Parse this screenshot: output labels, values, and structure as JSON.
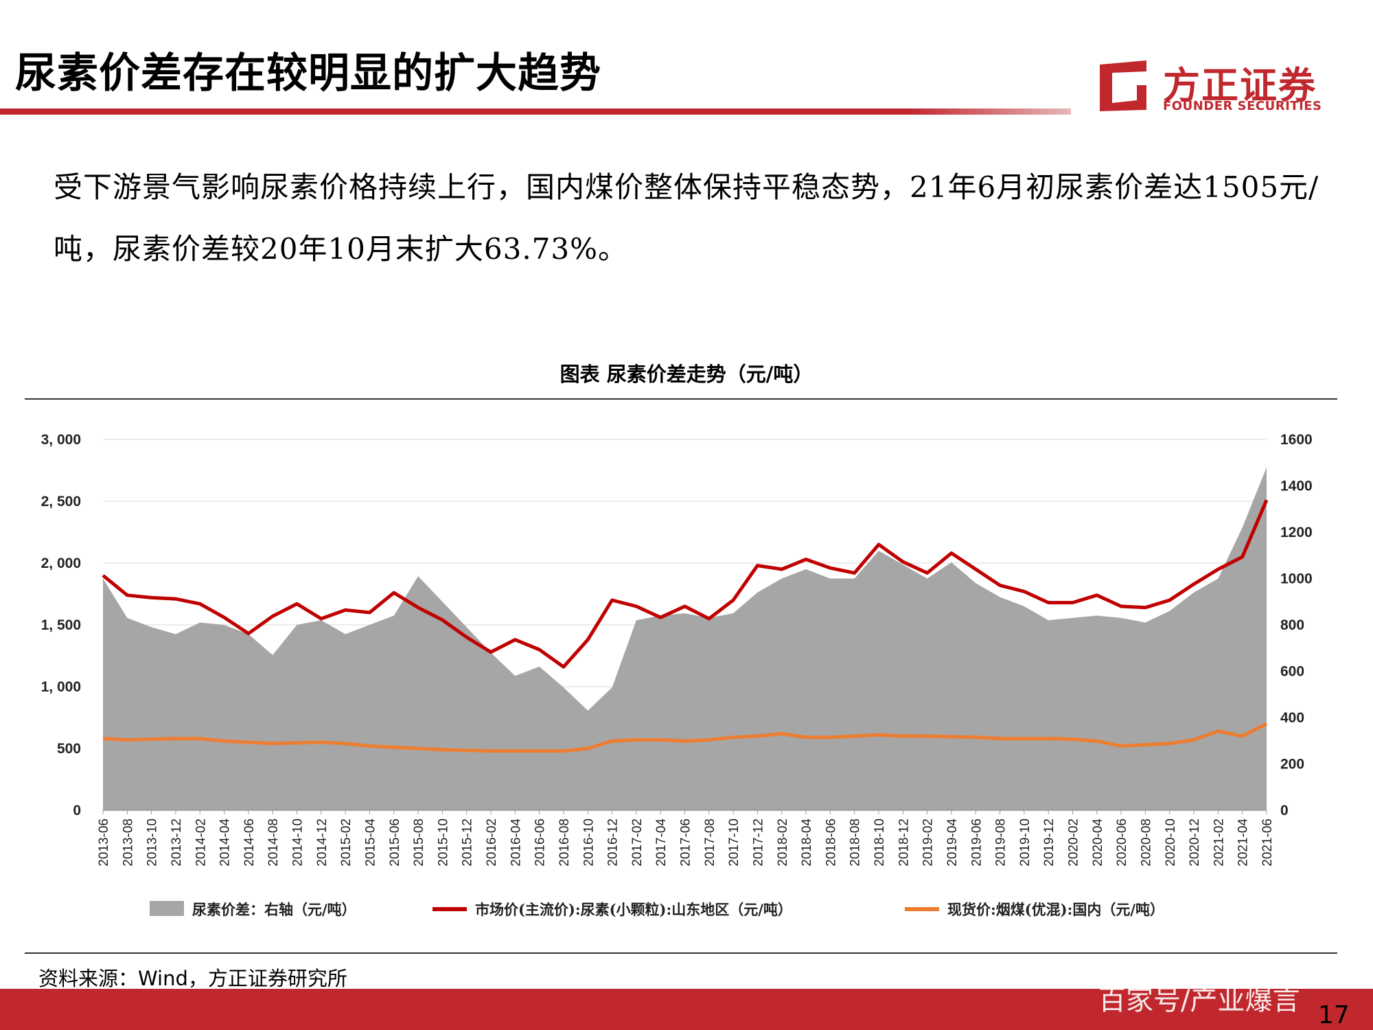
{
  "header": {
    "title": "尿素价差存在较明显的扩大趋势",
    "logo_cn": "方正证券",
    "logo_en": "FOUNDER SECURITIES"
  },
  "body": {
    "paragraph": "受下游景气影响尿素价格持续上行，国内煤价整体保持平稳态势，21年6月初尿素价差达1505元/吨，尿素价差较20年10月末扩大63.73%。"
  },
  "chart_title": "图表 尿素价差走势（元/吨）",
  "source": "资料来源：Wind，方正证券研究所",
  "watermark": "百家号/产业爆言",
  "page_number": "17",
  "colors": {
    "accent": "#c0282e",
    "spread_fill": "#a6a6a6",
    "urea": "#c00000",
    "coal": "#ed7d31"
  },
  "chart_data": {
    "type": "line",
    "x_ticks": [
      "2013-06",
      "2013-08",
      "2013-10",
      "2013-12",
      "2014-02",
      "2014-04",
      "2014-06",
      "2014-08",
      "2014-10",
      "2014-12",
      "2015-02",
      "2015-04",
      "2015-06",
      "2015-08",
      "2015-10",
      "2015-12",
      "2016-02",
      "2016-04",
      "2016-06",
      "2016-08",
      "2016-10",
      "2016-12",
      "2017-02",
      "2017-04",
      "2017-06",
      "2017-08",
      "2017-10",
      "2017-12",
      "2018-02",
      "2018-04",
      "2018-06",
      "2018-08",
      "2018-10",
      "2018-12",
      "2019-02",
      "2019-04",
      "2019-06",
      "2019-08",
      "2019-10",
      "2019-12",
      "2020-02",
      "2020-04",
      "2020-06",
      "2020-08",
      "2020-10",
      "2020-12",
      "2021-02",
      "2021-04",
      "2021-06"
    ],
    "y_left": {
      "ticks": [
        "0",
        "500",
        "1, 000",
        "1, 500",
        "2, 000",
        "2, 500",
        "3, 000"
      ],
      "min": 0,
      "max": 3000
    },
    "y_right": {
      "ticks": [
        "0",
        "200",
        "400",
        "600",
        "800",
        "1000",
        "1200",
        "1400",
        "1600"
      ],
      "min": 0,
      "max": 1600
    },
    "series": [
      {
        "name": "尿素价差：右轴（元/吨）",
        "type": "area",
        "axis": "right",
        "values": [
          1000,
          830,
          790,
          760,
          810,
          800,
          760,
          670,
          800,
          820,
          760,
          800,
          840,
          1010,
          900,
          790,
          680,
          580,
          620,
          530,
          430,
          530,
          820,
          840,
          850,
          830,
          850,
          940,
          1000,
          1040,
          1000,
          1000,
          1120,
          1060,
          1000,
          1070,
          980,
          920,
          880,
          820,
          830,
          840,
          830,
          810,
          860,
          940,
          1000,
          1220,
          1480
        ]
      },
      {
        "name": "市场价(主流价):尿素(小颗粒):山东地区（元/吨）",
        "type": "line",
        "axis": "left",
        "values": [
          1900,
          1740,
          1720,
          1710,
          1670,
          1560,
          1430,
          1570,
          1670,
          1550,
          1620,
          1600,
          1760,
          1640,
          1540,
          1400,
          1280,
          1380,
          1300,
          1160,
          1380,
          1700,
          1650,
          1560,
          1650,
          1550,
          1700,
          1980,
          1950,
          2030,
          1960,
          1920,
          2150,
          2010,
          1920,
          2080,
          1950,
          1820,
          1770,
          1680,
          1680,
          1740,
          1650,
          1640,
          1700,
          1830,
          1950,
          2050,
          2510
        ]
      },
      {
        "name": "现货价:烟煤(优混):国内（元/吨）",
        "type": "line",
        "axis": "left",
        "values": [
          580,
          570,
          575,
          580,
          580,
          560,
          550,
          540,
          545,
          550,
          540,
          520,
          510,
          500,
          490,
          485,
          480,
          480,
          480,
          480,
          500,
          560,
          570,
          570,
          560,
          570,
          590,
          600,
          620,
          590,
          590,
          600,
          610,
          600,
          600,
          595,
          590,
          580,
          580,
          580,
          575,
          560,
          520,
          530,
          540,
          570,
          640,
          600,
          700
        ]
      }
    ],
    "legend_position": "bottom",
    "grid": true
  }
}
